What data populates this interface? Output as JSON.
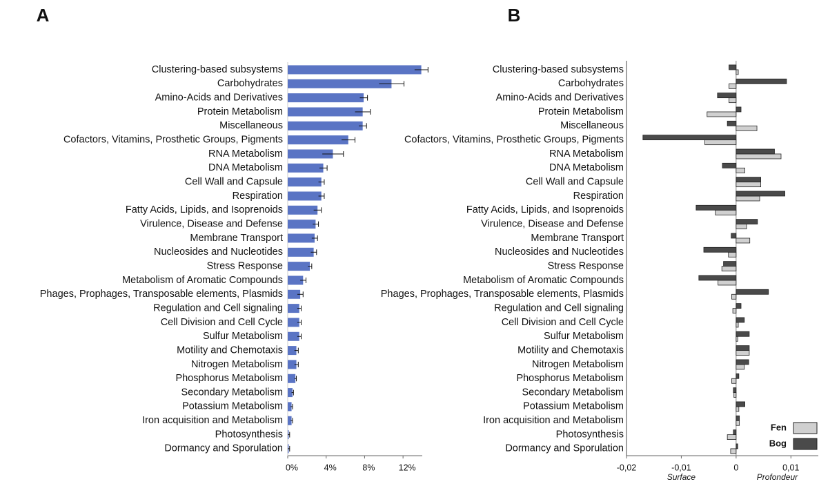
{
  "chart_data": [
    {
      "type": "bar",
      "title": "A",
      "color": "#5a74c4",
      "categories": [
        "Clustering-based subsystems",
        "Carbohydrates",
        "Amino-Acids and Derivatives",
        "Protein Metabolism",
        "Miscellaneous",
        "Cofactors, Vitamins, Prosthetic Groups, Pigments",
        "RNA Metabolism",
        "DNA Metabolism",
        "Cell Wall and Capsule",
        "Respiration",
        "Fatty Acids, Lipids, and Isoprenoids",
        "Virulence, Disease and Defense",
        "Membrane Transport",
        "Nucleosides and Nucleotides",
        "Stress Response",
        "Metabolism of Aromatic Compounds",
        "Phages, Prophages, Transposable elements, Plasmids",
        "Regulation and Cell signaling",
        "Cell Division and Cell Cycle",
        "Sulfur Metabolism",
        "Motility and Chemotaxis",
        "Nitrogen Metabolism",
        "Phosphorus Metabolism",
        "Secondary Metabolism",
        "Potassium Metabolism",
        "Iron acquisition and Metabolism",
        "Photosynthesis",
        "Dormancy and Sporulation"
      ],
      "values": [
        13.9,
        10.8,
        7.9,
        7.8,
        7.8,
        6.3,
        4.7,
        3.7,
        3.5,
        3.5,
        3.1,
        2.9,
        2.8,
        2.7,
        2.3,
        1.6,
        1.3,
        1.2,
        1.2,
        1.2,
        0.9,
        0.9,
        0.8,
        0.5,
        0.4,
        0.4,
        0.1,
        0.1
      ],
      "errors": [
        0.7,
        1.3,
        0.4,
        0.8,
        0.4,
        0.7,
        1.1,
        0.4,
        0.3,
        0.3,
        0.4,
        0.3,
        0.3,
        0.3,
        0.2,
        0.3,
        0.3,
        0.2,
        0.2,
        0.2,
        0.2,
        0.2,
        0.1,
        0.1,
        0.1,
        0.1,
        0.1,
        0.1
      ],
      "xlim": [
        0,
        14
      ],
      "xticks": [
        {
          "value": 0,
          "label": "0%"
        },
        {
          "value": 4,
          "label": "4%"
        },
        {
          "value": 8,
          "label": "8%"
        },
        {
          "value": 12,
          "label": "12%"
        }
      ]
    },
    {
      "type": "bar",
      "title": "B",
      "categories": [
        "Clustering-based subsystems",
        "Carbohydrates",
        "Amino-Acids and Derivatives",
        "Protein Metabolism",
        "Miscellaneous",
        "Cofactors, Vitamins, Prosthetic Groups, Pigments",
        "RNA Metabolism",
        "DNA Metabolism",
        "Cell Wall and Capsule",
        "Respiration",
        "Fatty Acids, Lipids, and Isoprenoids",
        "Virulence, Disease and Defense",
        "Membrane Transport",
        "Nucleosides and Nucleotides",
        "Stress Response",
        "Metabolism of Aromatic Compounds",
        "Phages, Prophages, Transposable elements, Plasmids",
        "Regulation and Cell signaling",
        "Cell Division and Cell Cycle",
        "Sulfur Metabolism",
        "Motility and Chemotaxis",
        "Nitrogen Metabolism",
        "Phosphorus Metabolism",
        "Secondary Metabolism",
        "Potassium Metabolism",
        "Iron acquisition and Metabolism",
        "Photosynthesis",
        "Dormancy and Sporulation"
      ],
      "series": [
        {
          "name": "Fen",
          "color": "#d0d0d0",
          "values": [
            0.0004,
            -0.0013,
            -0.0013,
            -0.0053,
            0.0038,
            -0.0057,
            0.0082,
            0.0016,
            0.0045,
            0.0043,
            -0.0038,
            0.0019,
            0.0025,
            -0.0014,
            -0.0026,
            -0.0033,
            -0.0008,
            -0.0006,
            0.0004,
            0.0003,
            0.0024,
            0.0015,
            -0.0008,
            -0.0004,
            0.0005,
            0.0006,
            -0.0016,
            -0.001
          ]
        },
        {
          "name": "Bog",
          "color": "#4a4a4a",
          "values": [
            -0.0013,
            0.0092,
            -0.0034,
            0.0009,
            -0.0016,
            -0.017,
            0.007,
            -0.0025,
            0.0045,
            0.0089,
            -0.0073,
            0.0039,
            -0.0009,
            -0.0059,
            -0.0023,
            -0.0068,
            0.0059,
            0.0009,
            0.0015,
            0.0024,
            0.0024,
            0.0023,
            0.0005,
            -0.0005,
            0.0016,
            0.0006,
            -0.0005,
            0.0003
          ]
        }
      ],
      "xlim": [
        -0.02,
        0.015
      ],
      "xticks": [
        {
          "value": -0.02,
          "label": "-0,02"
        },
        {
          "value": -0.01,
          "label": "-0,01"
        },
        0,
        {
          "value": 0.01,
          "label": "0,01"
        }
      ],
      "annotations": [
        "Surface",
        "Profondeur"
      ],
      "legend": "lower right"
    }
  ]
}
